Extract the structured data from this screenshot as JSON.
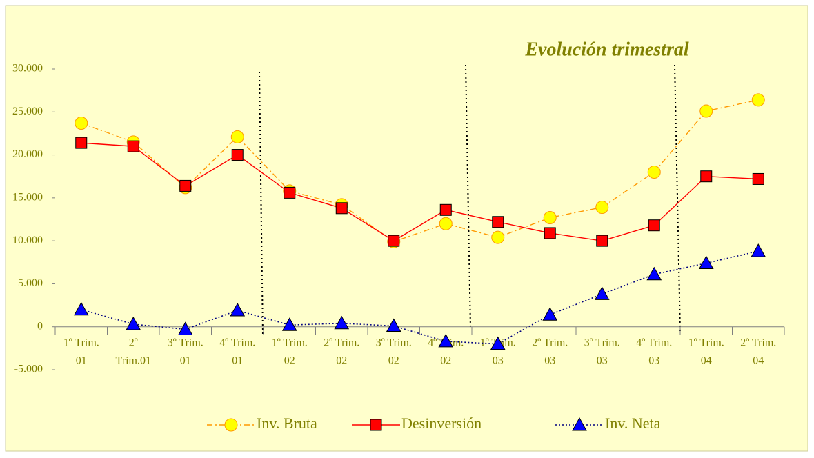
{
  "chart_data": {
    "type": "line",
    "title": "Evolución trimestral",
    "categories": [
      [
        "1º Trim.",
        "01"
      ],
      [
        "2º",
        "Trim.01"
      ],
      [
        "3º Trim.",
        "01"
      ],
      [
        "4º Trim.",
        "01"
      ],
      [
        "1º Trim.",
        "02"
      ],
      [
        "2º Trim.",
        "02"
      ],
      [
        "3º Trim.",
        "02"
      ],
      [
        "4º Trim.",
        "02"
      ],
      [
        "1º Trim.",
        "03"
      ],
      [
        "2º Trim.",
        "03"
      ],
      [
        "3º Trim.",
        "03"
      ],
      [
        "4º Trim.",
        "03"
      ],
      [
        "1º Trim.",
        "04"
      ],
      [
        "2º Trim.",
        "04"
      ]
    ],
    "series": [
      {
        "name": "Inv. Bruta",
        "color": "#ff9900",
        "marker_color": "#ffff00",
        "marker": "circle",
        "dash": "dash-dot",
        "values": [
          23700,
          21500,
          16200,
          22100,
          15800,
          14200,
          9900,
          12000,
          10400,
          12700,
          13900,
          18000,
          25100,
          26400
        ]
      },
      {
        "name": "Desinversión",
        "color": "#ff0000",
        "marker_color": "#ff0000",
        "marker": "square",
        "dash": "solid",
        "values": [
          21400,
          21000,
          16400,
          20000,
          15600,
          13800,
          10000,
          13600,
          12200,
          10900,
          10000,
          11800,
          17500,
          17200
        ]
      },
      {
        "name": "Inv. Neta",
        "color": "#000080",
        "marker_color": "#0000ff",
        "marker": "triangle",
        "dash": "dotted",
        "values": [
          2000,
          300,
          -300,
          1900,
          200,
          400,
          100,
          -1700,
          -2000,
          1400,
          3800,
          6100,
          7400,
          8800
        ]
      }
    ],
    "ylim": [
      -5000,
      30000
    ],
    "yticks": [
      {
        "value": -5000,
        "label": "-5.000"
      },
      0,
      {
        "value": 5000,
        "label": "5.000"
      },
      {
        "value": 10000,
        "label": "10.000"
      },
      {
        "value": 15000,
        "label": "15.000"
      },
      {
        "value": 20000,
        "label": "20.000"
      },
      {
        "value": 25000,
        "label": "25.000"
      },
      {
        "value": 30000,
        "label": "30.000"
      }
    ],
    "legend": "bottom"
  }
}
